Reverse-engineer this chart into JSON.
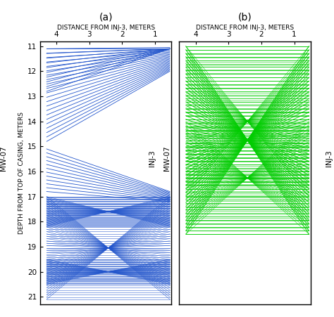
{
  "title_a": "(a)",
  "title_b": "(b)",
  "xlabel": "DISTANCE FROM INJ-3, METERS",
  "ylabel": "DEPTH FROM TOP OF CASING, METERS",
  "left_label": "MW-07",
  "right_label": "INJ-3",
  "xlim": [
    4.5,
    0.5
  ],
  "ylim": [
    21.3,
    10.8
  ],
  "xticks": [
    4,
    3,
    2,
    1
  ],
  "yticks": [
    11,
    12,
    13,
    14,
    15,
    16,
    17,
    18,
    19,
    20,
    21
  ],
  "color_a": "#2255cc",
  "color_b": "#00cc00",
  "lw_a": 0.6,
  "lw_b": 0.7
}
